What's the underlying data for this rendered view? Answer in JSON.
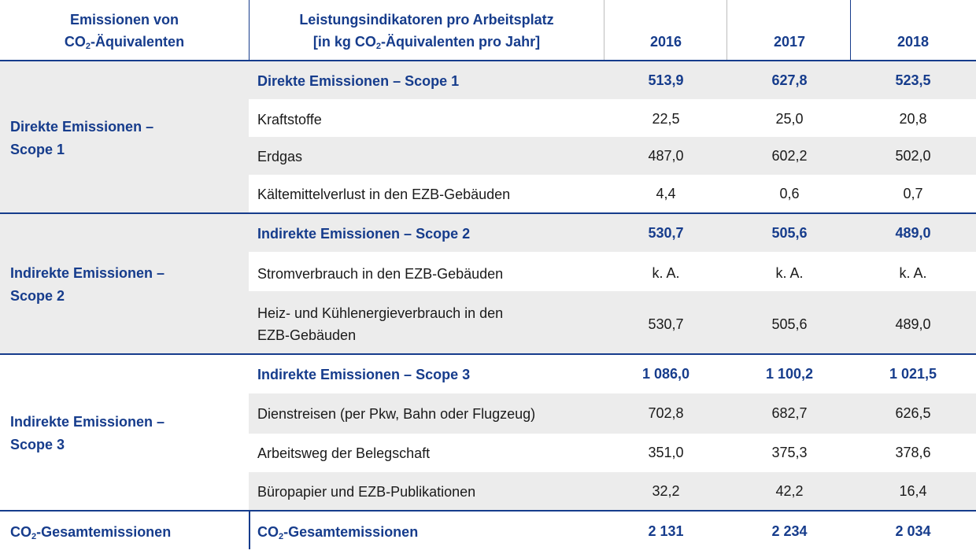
{
  "header": {
    "col1_line1": "Emissionen von",
    "col1_line2_a": "CO",
    "col1_line2_sub": "2",
    "col1_line2_b": "-Äquivalenten",
    "col2_line1": "Leistungsindikatoren pro Arbeitsplatz",
    "col2_line2_a": "[in kg CO",
    "col2_line2_sub": "2",
    "col2_line2_b": "-Äquivalenten pro Jahr]",
    "years": [
      "2016",
      "2017",
      "2018"
    ]
  },
  "groups": [
    {
      "label_line1": "Direkte Emissionen –",
      "label_line2": "Scope 1",
      "rows": [
        {
          "label": "Direkte Emissionen – Scope 1",
          "values": [
            "513,9",
            "627,8",
            "523,5"
          ]
        },
        {
          "label": "Kraftstoffe",
          "values": [
            "22,5",
            "25,0",
            "20,8"
          ]
        },
        {
          "label": "Erdgas",
          "values": [
            "487,0",
            "602,2",
            "502,0"
          ]
        },
        {
          "label": "Kältemittelverlust in den EZB-Gebäuden",
          "values": [
            "4,4",
            "0,6",
            "0,7"
          ]
        }
      ]
    },
    {
      "label_line1": "Indirekte Emissionen –",
      "label_line2": "Scope 2",
      "rows": [
        {
          "label": "Indirekte Emissionen – Scope 2",
          "values": [
            "530,7",
            "505,6",
            "489,0"
          ]
        },
        {
          "label": "Stromverbrauch in den EZB-Gebäuden",
          "values": [
            "k. A.",
            "k. A.",
            "k. A."
          ]
        },
        {
          "label_line1": "Heiz- und Kühlenergieverbrauch in den",
          "label_line2": "EZB-Gebäuden",
          "values": [
            "530,7",
            "505,6",
            "489,0"
          ]
        }
      ]
    },
    {
      "label_line1": "Indirekte Emissionen –",
      "label_line2": "Scope 3",
      "rows": [
        {
          "label": "Indirekte Emissionen – Scope 3",
          "values": [
            "1 086,0",
            "1 100,2",
            "1 021,5"
          ]
        },
        {
          "label": "Dienstreisen (per Pkw, Bahn oder Flugzeug)",
          "values": [
            "702,8",
            "682,7",
            "626,5"
          ]
        },
        {
          "label": "Arbeitsweg der Belegschaft",
          "values": [
            "351,0",
            "375,3",
            "378,6"
          ]
        },
        {
          "label": "Büropapier und EZB-Publikationen",
          "values": [
            "32,2",
            "42,2",
            "16,4"
          ]
        }
      ]
    }
  ],
  "total": {
    "left_a": "CO",
    "left_sub": "2",
    "left_b": "-Gesamtemissionen",
    "label_a": "CO",
    "label_sub": "2",
    "label_b": "-Gesamtemissionen",
    "values": [
      "2 131",
      "2 234",
      "2 034"
    ]
  },
  "colors": {
    "accent": "#163c8c",
    "shade": "#ececec"
  }
}
